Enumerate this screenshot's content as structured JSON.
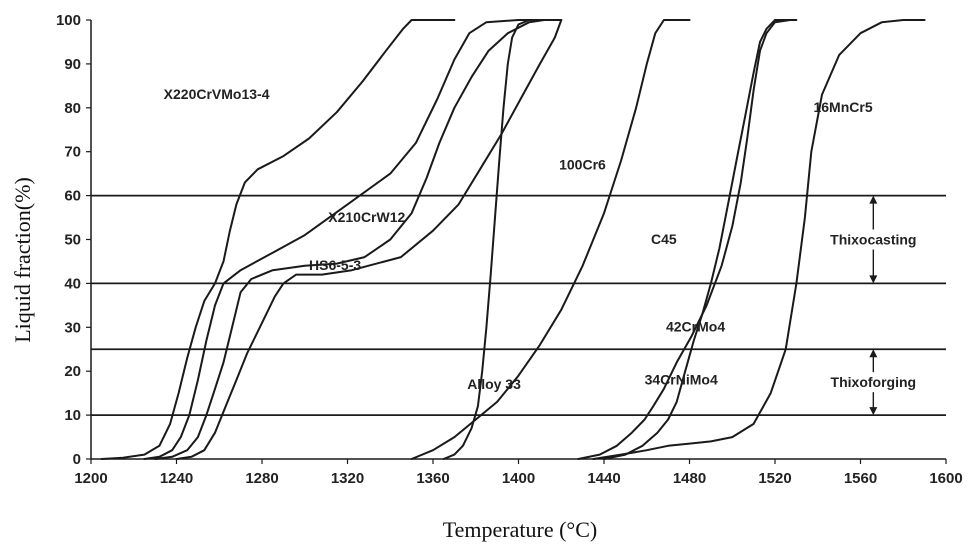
{
  "chart_data": {
    "type": "line",
    "xlabel": "Temperature (°C)",
    "ylabel": "Liquid fraction(%)",
    "xlim": [
      1200,
      1600
    ],
    "ylim": [
      0,
      100
    ],
    "xticks": [
      1200,
      1240,
      1280,
      1320,
      1360,
      1400,
      1440,
      1480,
      1520,
      1560,
      1600
    ],
    "yticks": [
      0,
      10,
      20,
      30,
      40,
      50,
      60,
      70,
      80,
      90,
      100
    ],
    "grid": "none",
    "reference_lines_y": [
      10,
      25,
      40,
      60
    ],
    "zones": [
      {
        "name": "Thixocasting",
        "from": 40,
        "to": 60
      },
      {
        "name": "Thixoforging",
        "from": 10,
        "to": 25
      }
    ],
    "series": [
      {
        "name": "X220CrVMo13-4",
        "points": [
          [
            1205,
            0
          ],
          [
            1215,
            0.3
          ],
          [
            1225,
            1
          ],
          [
            1232,
            3
          ],
          [
            1237,
            8
          ],
          [
            1241,
            15
          ],
          [
            1245,
            23
          ],
          [
            1249,
            30
          ],
          [
            1253,
            36
          ],
          [
            1258,
            40
          ],
          [
            1262,
            45
          ],
          [
            1265,
            52
          ],
          [
            1268,
            58
          ],
          [
            1272,
            63
          ],
          [
            1278,
            66
          ],
          [
            1290,
            69
          ],
          [
            1302,
            73
          ],
          [
            1315,
            79
          ],
          [
            1327,
            86
          ],
          [
            1338,
            93
          ],
          [
            1346,
            98
          ],
          [
            1350,
            100
          ],
          [
            1370,
            100
          ]
        ]
      },
      {
        "name": "X210CrW12",
        "points": [
          [
            1225,
            0
          ],
          [
            1232,
            0.5
          ],
          [
            1238,
            2
          ],
          [
            1242,
            5
          ],
          [
            1246,
            10
          ],
          [
            1250,
            18
          ],
          [
            1254,
            27
          ],
          [
            1258,
            35
          ],
          [
            1262,
            40
          ],
          [
            1270,
            43
          ],
          [
            1285,
            47
          ],
          [
            1300,
            51
          ],
          [
            1320,
            58
          ],
          [
            1340,
            65
          ],
          [
            1352,
            72
          ],
          [
            1362,
            82
          ],
          [
            1370,
            91
          ],
          [
            1377,
            97
          ],
          [
            1385,
            99.5
          ],
          [
            1400,
            100
          ],
          [
            1420,
            100
          ]
        ]
      },
      {
        "name": "HS6-5-3",
        "points": [
          [
            1230,
            0
          ],
          [
            1238,
            0.5
          ],
          [
            1245,
            2
          ],
          [
            1250,
            5
          ],
          [
            1254,
            10
          ],
          [
            1258,
            16
          ],
          [
            1262,
            22
          ],
          [
            1266,
            30
          ],
          [
            1270,
            38
          ],
          [
            1275,
            41
          ],
          [
            1285,
            43
          ],
          [
            1300,
            44
          ],
          [
            1315,
            44.5
          ],
          [
            1328,
            46
          ],
          [
            1340,
            50
          ],
          [
            1350,
            56
          ],
          [
            1357,
            64
          ],
          [
            1363,
            72
          ],
          [
            1370,
            80
          ],
          [
            1378,
            87
          ],
          [
            1386,
            93
          ],
          [
            1395,
            97
          ],
          [
            1405,
            99.5
          ],
          [
            1412,
            100
          ]
        ]
      },
      {
        "name": "Alloy 33",
        "points": [
          [
            1240,
            0
          ],
          [
            1247,
            0.5
          ],
          [
            1253,
            2
          ],
          [
            1258,
            6
          ],
          [
            1263,
            12
          ],
          [
            1268,
            18
          ],
          [
            1273,
            24
          ],
          [
            1278,
            29
          ],
          [
            1282,
            33
          ],
          [
            1286,
            37
          ],
          [
            1290,
            40
          ],
          [
            1296,
            42
          ],
          [
            1308,
            42
          ],
          [
            1322,
            43
          ],
          [
            1345,
            46
          ],
          [
            1360,
            52
          ],
          [
            1372,
            58
          ],
          [
            1382,
            66
          ],
          [
            1392,
            74
          ],
          [
            1401,
            82
          ],
          [
            1410,
            90
          ],
          [
            1417,
            96
          ],
          [
            1420,
            100
          ]
        ]
      },
      {
        "name": "100Cr6",
        "points": [
          [
            1365,
            0
          ],
          [
            1370,
            1
          ],
          [
            1374,
            3
          ],
          [
            1378,
            7
          ],
          [
            1381,
            12
          ],
          [
            1383,
            20
          ],
          [
            1385,
            30
          ],
          [
            1387,
            42
          ],
          [
            1389,
            55
          ],
          [
            1391,
            68
          ],
          [
            1393,
            80
          ],
          [
            1395,
            90
          ],
          [
            1397,
            96
          ],
          [
            1400,
            99
          ],
          [
            1405,
            100
          ],
          [
            1412,
            100
          ]
        ]
      },
      {
        "name": "C45",
        "points": [
          [
            1350,
            0
          ],
          [
            1360,
            2
          ],
          [
            1370,
            5
          ],
          [
            1380,
            9
          ],
          [
            1390,
            13
          ],
          [
            1400,
            19
          ],
          [
            1410,
            26
          ],
          [
            1420,
            34
          ],
          [
            1430,
            44
          ],
          [
            1440,
            56
          ],
          [
            1448,
            68
          ],
          [
            1455,
            80
          ],
          [
            1460,
            90
          ],
          [
            1464,
            97
          ],
          [
            1468,
            100
          ],
          [
            1480,
            100
          ]
        ]
      },
      {
        "name": "42CrMo4",
        "points": [
          [
            1440,
            0
          ],
          [
            1450,
            1
          ],
          [
            1458,
            3
          ],
          [
            1465,
            6
          ],
          [
            1470,
            9
          ],
          [
            1474,
            13
          ],
          [
            1478,
            20
          ],
          [
            1482,
            27
          ],
          [
            1486,
            33
          ],
          [
            1490,
            40
          ],
          [
            1494,
            48
          ],
          [
            1498,
            58
          ],
          [
            1502,
            68
          ],
          [
            1506,
            78
          ],
          [
            1510,
            88
          ],
          [
            1513,
            95
          ],
          [
            1516,
            98
          ],
          [
            1520,
            100
          ],
          [
            1530,
            100
          ]
        ]
      },
      {
        "name": "34CrNiMo4",
        "points": [
          [
            1428,
            0
          ],
          [
            1438,
            1
          ],
          [
            1446,
            3
          ],
          [
            1453,
            6
          ],
          [
            1459,
            9
          ],
          [
            1463,
            12
          ],
          [
            1468,
            16
          ],
          [
            1474,
            22
          ],
          [
            1481,
            28
          ],
          [
            1488,
            35
          ],
          [
            1495,
            44
          ],
          [
            1500,
            53
          ],
          [
            1504,
            63
          ],
          [
            1507,
            73
          ],
          [
            1510,
            84
          ],
          [
            1513,
            93
          ],
          [
            1516,
            97
          ],
          [
            1520,
            99.5
          ],
          [
            1527,
            100
          ]
        ]
      },
      {
        "name": "16MnCr5",
        "points": [
          [
            1435,
            0
          ],
          [
            1448,
            1
          ],
          [
            1460,
            2
          ],
          [
            1470,
            3
          ],
          [
            1480,
            3.5
          ],
          [
            1490,
            4
          ],
          [
            1500,
            5
          ],
          [
            1510,
            8
          ],
          [
            1518,
            15
          ],
          [
            1525,
            25
          ],
          [
            1530,
            40
          ],
          [
            1534,
            55
          ],
          [
            1537,
            70
          ],
          [
            1542,
            83
          ],
          [
            1550,
            92
          ],
          [
            1560,
            97
          ],
          [
            1570,
            99.5
          ],
          [
            1580,
            100
          ],
          [
            1590,
            100
          ]
        ]
      }
    ],
    "series_labels": [
      {
        "name": "X220CrVMo13-4",
        "text": "X220CrVMo13-4",
        "x": 1234,
        "y": 82
      },
      {
        "name": "X210CrW12",
        "text": "X210CrW12",
        "x": 1311,
        "y": 54
      },
      {
        "name": "HS6-5-3",
        "text": "HS6-5-3",
        "x": 1302,
        "y": 43
      },
      {
        "name": "Alloy 33",
        "text": "Alloy 33",
        "x": 1376,
        "y": 16
      },
      {
        "name": "100Cr6",
        "text": "100Cr6",
        "x": 1419,
        "y": 66
      },
      {
        "name": "C45",
        "text": "C45",
        "x": 1462,
        "y": 49
      },
      {
        "name": "42CrMo4",
        "text": "42CrMo4",
        "x": 1469,
        "y": 29
      },
      {
        "name": "34CrNiMo4",
        "text": "34CrNiMo4",
        "x": 1459,
        "y": 17
      },
      {
        "name": "16MnCr5",
        "text": "16MnCr5",
        "x": 1538,
        "y": 79
      }
    ]
  }
}
